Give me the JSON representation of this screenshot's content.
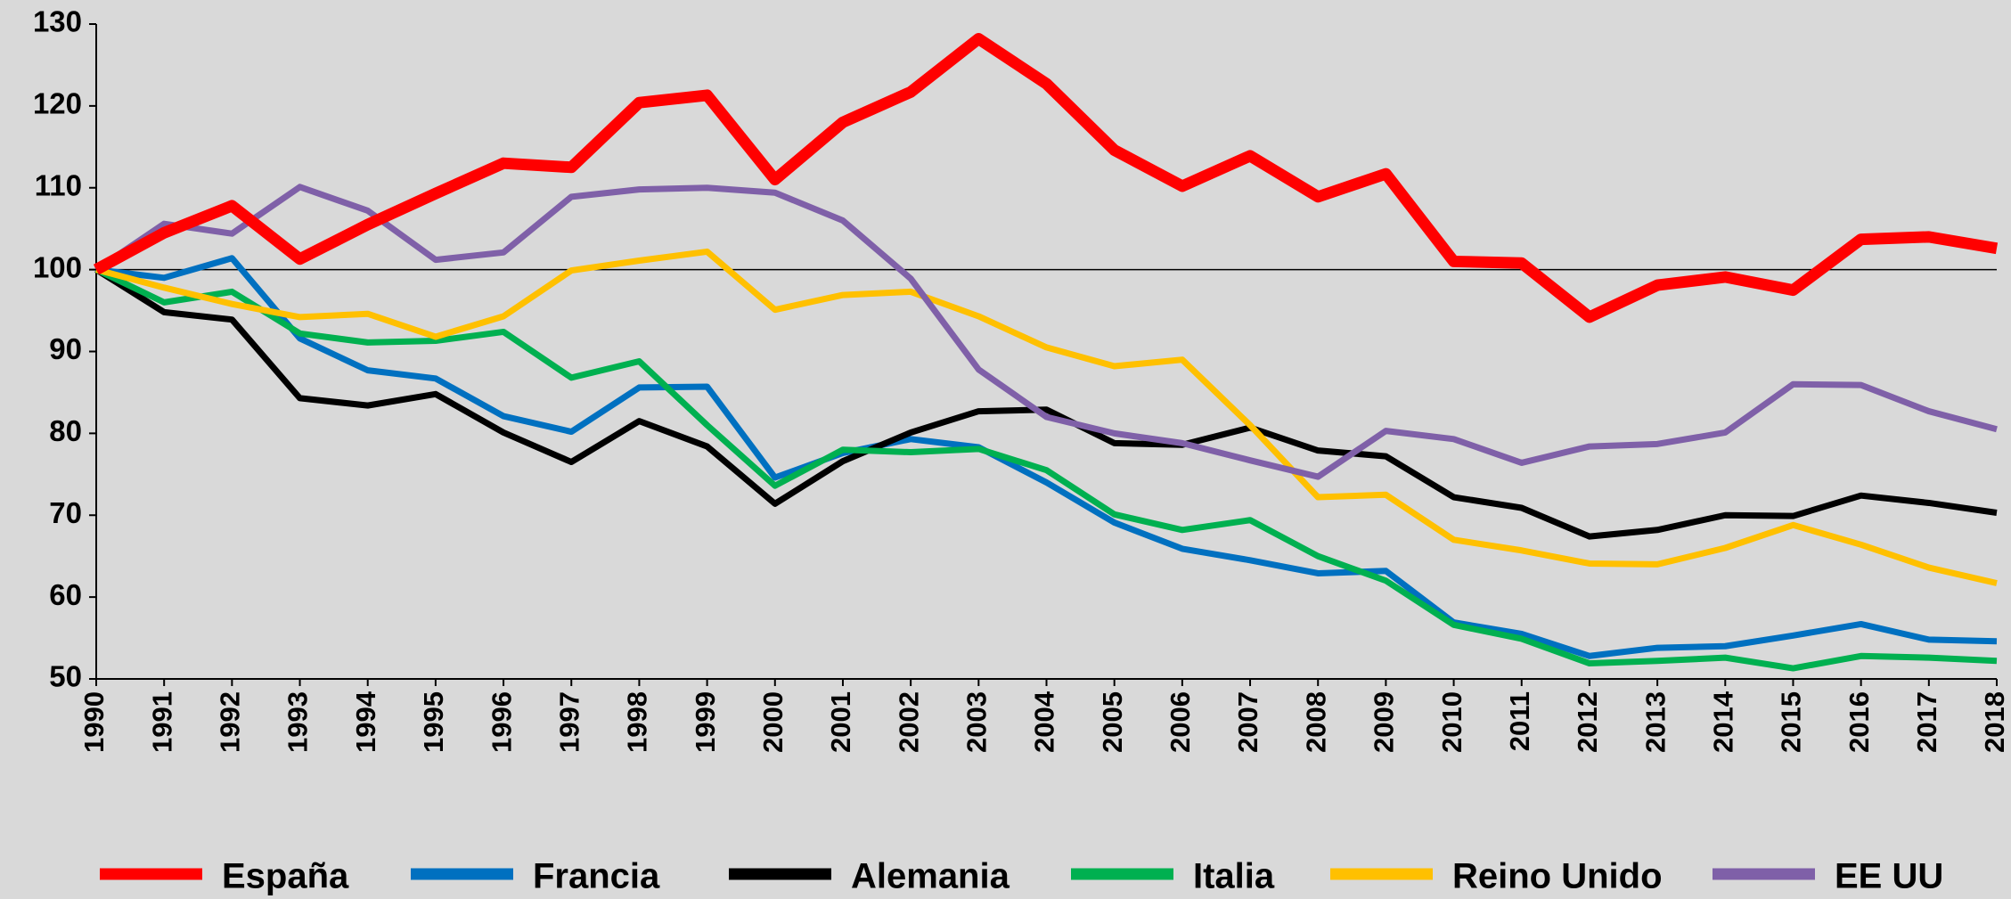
{
  "chart_data": {
    "type": "line",
    "categories": [
      "1990",
      "1991",
      "1992",
      "1993",
      "1994",
      "1995",
      "1996",
      "1997",
      "1998",
      "1999",
      "2000",
      "2001",
      "2002",
      "2003",
      "2004",
      "2005",
      "2006",
      "2007",
      "2008",
      "2009",
      "2010",
      "2011",
      "2012",
      "2013",
      "2014",
      "2015",
      "2016",
      "2017",
      "2018"
    ],
    "series": [
      {
        "name": "España",
        "color": "#ff0000",
        "values": [
          100,
          104.5,
          107.8,
          101.3,
          105.5,
          109.3,
          113,
          112.5,
          120.4,
          121.3,
          111,
          118,
          121.7,
          128.2,
          122.7,
          114.6,
          110.2,
          113.9,
          108.9,
          111.7,
          101,
          100.8,
          94.2,
          98.1,
          99.1,
          97.5,
          103.7,
          104,
          102.6
        ]
      },
      {
        "name": "Francia",
        "color": "#0070c0",
        "values": [
          100,
          99,
          101.4,
          91.6,
          87.7,
          86.7,
          82.1,
          80.2,
          85.6,
          85.7,
          74.6,
          77.6,
          79.3,
          78.3,
          74,
          69.1,
          65.9,
          64.5,
          62.9,
          63.2,
          56.9,
          55.5,
          52.8,
          53.8,
          54,
          55.3,
          56.7,
          54.8,
          54.6
        ]
      },
      {
        "name": "Alemania",
        "color": "#000000",
        "values": [
          100,
          94.8,
          93.9,
          84.3,
          83.4,
          84.8,
          80.1,
          76.5,
          81.5,
          78.4,
          71.4,
          76.6,
          80.1,
          82.7,
          82.9,
          78.8,
          78.6,
          80.7,
          77.9,
          77.2,
          72.2,
          70.9,
          67.4,
          68.2,
          70,
          69.9,
          72.4,
          71.5,
          70.3
        ]
      },
      {
        "name": "Italia",
        "color": "#00b050",
        "values": [
          100,
          96,
          97.3,
          92.2,
          91.1,
          91.3,
          92.4,
          86.8,
          88.8,
          81,
          73.6,
          78,
          77.7,
          78.1,
          75.5,
          70.1,
          68.2,
          69.4,
          65,
          62,
          56.6,
          54.9,
          51.9,
          52.2,
          52.6,
          51.3,
          52.8,
          52.6,
          52.2
        ]
      },
      {
        "name": "Reino Unido",
        "color": "#ffc000",
        "values": [
          100,
          97.8,
          95.8,
          94.2,
          94.6,
          91.8,
          94.3,
          99.9,
          101.1,
          102.2,
          95.1,
          96.9,
          97.3,
          94.3,
          90.5,
          88.2,
          89,
          81,
          72.2,
          72.5,
          67,
          65.7,
          64.1,
          64,
          66,
          68.8,
          66.4,
          63.6,
          61.7
        ]
      },
      {
        "name": "EE UU",
        "color": "#7f60a8",
        "values": [
          100,
          105.6,
          104.4,
          110.1,
          107.2,
          101.2,
          102.1,
          108.9,
          109.8,
          110,
          109.4,
          106,
          98.9,
          87.8,
          82,
          80,
          78.8,
          76.7,
          74.7,
          80.3,
          79.3,
          76.4,
          78.4,
          78.7,
          80.1,
          86,
          85.9,
          82.7,
          80.5
        ]
      }
    ],
    "ylim": [
      50,
      130
    ],
    "yticks": [
      50,
      60,
      70,
      80,
      90,
      100,
      110,
      120,
      130
    ],
    "reference_line": 100,
    "grid": false,
    "legend": "bottom"
  }
}
